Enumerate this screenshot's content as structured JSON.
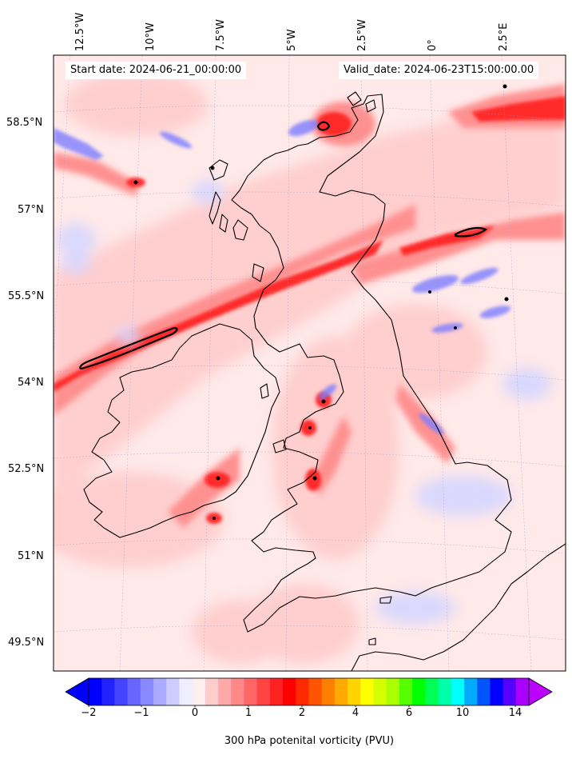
{
  "map": {
    "start_label": "Start date: 2024-06-21_00:00:00",
    "valid_label": "Valid_date: 2024-06-23T15:00:00.00",
    "longitude_labels": [
      "12.5°W",
      "10°W",
      "7.5°W",
      "5°W",
      "2.5°W",
      "0°",
      "2.5°E"
    ],
    "latitude_labels": [
      "58.5°N",
      "57°N",
      "55.5°N",
      "54°N",
      "52.5°N",
      "51°N",
      "49.5°N"
    ],
    "colorbar": {
      "label": "300 hPa potenital vorticity (PVU)",
      "tick_labels": [
        "−2",
        "−1",
        "0",
        "1",
        "2",
        "4",
        "6",
        "10",
        "14"
      ],
      "colors": [
        "#0000ff",
        "#2222ff",
        "#4444ff",
        "#6666ff",
        "#8888ff",
        "#aaaaff",
        "#ccccff",
        "#eeeeff",
        "#ffeeee",
        "#ffcccc",
        "#ffaaaa",
        "#ff8888",
        "#ff6666",
        "#ff4444",
        "#ff2222",
        "#ff0000",
        "#ff2a00",
        "#ff5500",
        "#ff8000",
        "#ffaa00",
        "#ffd400",
        "#ffff00",
        "#d4ff00",
        "#aaff00",
        "#55ff00",
        "#00ff00",
        "#00ff55",
        "#00ffaa",
        "#00ffff",
        "#00aaff",
        "#0055ff",
        "#0000ff",
        "#5500ff",
        "#aa00ff"
      ],
      "extend_min_color": "#0000ff",
      "extend_max_color": "#bb00ff"
    },
    "colors": {
      "background": "#ffe9e9",
      "weak_positive": "#ffcccc",
      "moderate_positive": "#ff8a8a",
      "strong_positive": "#ff3030",
      "peak": "#ff0000",
      "negative": "#ccccff",
      "coastline": "#000000"
    }
  }
}
